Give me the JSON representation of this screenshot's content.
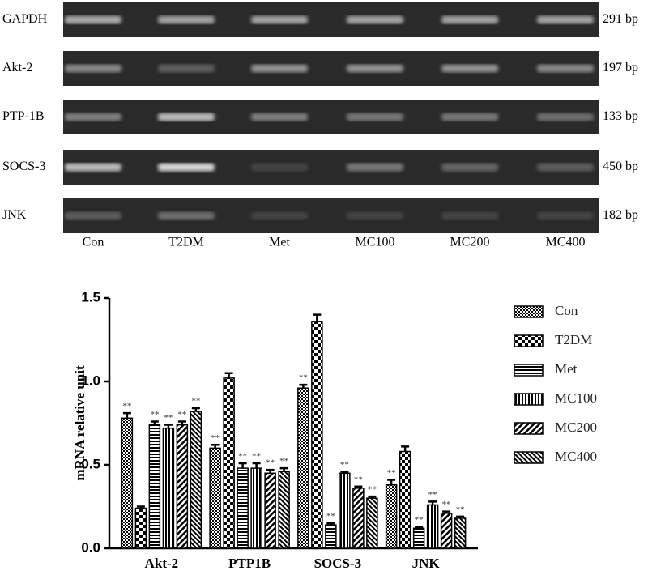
{
  "gel": {
    "rows": [
      {
        "label": "GAPDH",
        "size": "291 bp"
      },
      {
        "label": "Akt-2",
        "size": "197 bp"
      },
      {
        "label": "PTP-1B",
        "size": "133 bp"
      },
      {
        "label": "SOCS-3",
        "size": "450 bp"
      },
      {
        "label": "JNK",
        "size": "182 bp"
      }
    ],
    "lanes": [
      "Con",
      "T2DM",
      "Met",
      "MC100",
      "MC200",
      "MC400"
    ]
  },
  "chart_data": {
    "type": "bar",
    "y_label": "mRNA relative unit",
    "categories": [
      "Akt-2",
      "PTP1B",
      "SOCS-3",
      "JNK"
    ],
    "ylim": [
      0,
      1.5
    ],
    "yticks": [
      {
        "value": 0,
        "label": "0.0"
      },
      0.5,
      {
        "value": 1,
        "label": "1.0"
      },
      1.5
    ],
    "legend": "right",
    "series": [
      {
        "name": "Con",
        "color": "#000000",
        "pattern": "checker",
        "values": [
          0.78,
          0.6,
          0.96,
          0.38
        ],
        "errors": [
          0.03,
          0.02,
          0.02,
          0.03
        ],
        "annotations": [
          "**",
          "**",
          "**",
          "**"
        ]
      },
      {
        "name": "T2DM",
        "color": "#000000",
        "pattern": "checker-large",
        "values": [
          0.24,
          1.02,
          1.36,
          0.58
        ],
        "errors": [
          0.01,
          0.03,
          0.04,
          0.03
        ],
        "annotations": [
          null,
          null,
          null,
          null
        ]
      },
      {
        "name": "Met",
        "color": "#000000",
        "pattern": "horizontal",
        "values": [
          0.74,
          0.48,
          0.14,
          0.12
        ],
        "errors": [
          0.02,
          0.03,
          0.01,
          0.01
        ],
        "annotations": [
          "**",
          "**",
          "**",
          "**"
        ]
      },
      {
        "name": "MC100",
        "color": "#000000",
        "pattern": "vertical",
        "values": [
          0.72,
          0.48,
          0.45,
          0.26
        ],
        "errors": [
          0.02,
          0.03,
          0.01,
          0.02
        ],
        "annotations": [
          "**",
          "**",
          "**",
          "**"
        ]
      },
      {
        "name": "MC200",
        "color": "#000000",
        "pattern": "diagonal",
        "values": [
          0.74,
          0.45,
          0.36,
          0.21
        ],
        "errors": [
          0.02,
          0.02,
          0.01,
          0.01
        ],
        "annotations": [
          "**",
          "**",
          "**",
          "**"
        ]
      },
      {
        "name": "MC400",
        "color": "#000000",
        "pattern": "diagonal-dense",
        "values": [
          0.82,
          0.46,
          0.3,
          0.18
        ],
        "errors": [
          0.02,
          0.02,
          0.01,
          0.01
        ],
        "annotations": [
          "**",
          "**",
          "**",
          "**"
        ]
      }
    ]
  }
}
